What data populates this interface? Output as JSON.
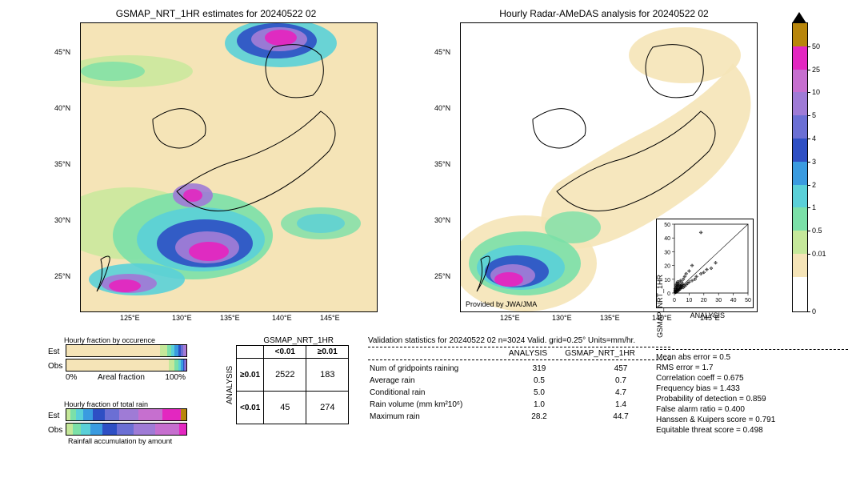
{
  "left_map": {
    "title": "GSMAP_NRT_1HR estimates for 20240522 02",
    "xlim": [
      120,
      150
    ],
    "ylim": [
      22,
      48
    ],
    "xticks": [
      "125°E",
      "130°E",
      "135°E",
      "140°E",
      "145°E"
    ],
    "yticks": [
      "25°N",
      "30°N",
      "35°N",
      "40°N",
      "45°N"
    ],
    "background_color": "#f5e4b7"
  },
  "right_map": {
    "title": "Hourly Radar-AMeDAS analysis for 20240522 02",
    "xlim": [
      120,
      150
    ],
    "ylim": [
      22,
      48
    ],
    "xticks": [
      "125°E",
      "130°E",
      "135°E",
      "140°E",
      "145°E"
    ],
    "yticks": [
      "25°N",
      "30°N",
      "35°N",
      "40°N",
      "45°N"
    ],
    "background_color": "#ffffff",
    "attribution": "Provided by JWA/JMA"
  },
  "colorbar": {
    "segments": [
      {
        "color": "#000000",
        "top_is_triangle": true
      },
      {
        "color": "#b8860b"
      },
      {
        "color": "#e327c0"
      },
      {
        "color": "#c66fcf"
      },
      {
        "color": "#9f7bd6"
      },
      {
        "color": "#6b6fd4"
      },
      {
        "color": "#2e4fc4"
      },
      {
        "color": "#3a9be0"
      },
      {
        "color": "#5ad0d8"
      },
      {
        "color": "#7be0a8"
      },
      {
        "color": "#c5e89a"
      },
      {
        "color": "#f5e4b7"
      },
      {
        "color": "#ffffff"
      }
    ],
    "ticks": [
      "50",
      "25",
      "10",
      "5",
      "4",
      "3",
      "2",
      "1",
      "0.5",
      "0.01",
      "0"
    ]
  },
  "scatter": {
    "xlabel": "ANALYSIS",
    "ylabel": "GSMAP_NRT_1HR",
    "xlim": [
      0,
      50
    ],
    "ylim": [
      0,
      50
    ],
    "ticks": [
      0,
      10,
      20,
      30,
      40,
      50
    ],
    "points": [
      [
        1,
        1
      ],
      [
        1,
        2
      ],
      [
        2,
        1
      ],
      [
        2,
        3
      ],
      [
        3,
        2
      ],
      [
        2,
        4
      ],
      [
        4,
        3
      ],
      [
        3,
        5
      ],
      [
        5,
        4
      ],
      [
        4,
        6
      ],
      [
        1,
        3
      ],
      [
        1,
        4
      ],
      [
        2,
        5
      ],
      [
        3,
        6
      ],
      [
        2,
        7
      ],
      [
        4,
        5
      ],
      [
        5,
        6
      ],
      [
        3,
        8
      ],
      [
        1,
        5
      ],
      [
        2,
        6
      ],
      [
        6,
        4
      ],
      [
        7,
        5
      ],
      [
        5,
        8
      ],
      [
        4,
        9
      ],
      [
        8,
        6
      ],
      [
        6,
        10
      ],
      [
        9,
        7
      ],
      [
        10,
        8
      ],
      [
        7,
        12
      ],
      [
        12,
        9
      ],
      [
        8,
        14
      ],
      [
        14,
        10
      ],
      [
        10,
        16
      ],
      [
        15,
        12
      ],
      [
        18,
        14
      ],
      [
        12,
        20
      ],
      [
        20,
        15
      ],
      [
        22,
        17
      ],
      [
        25,
        18
      ],
      [
        28,
        22
      ],
      [
        2,
        2
      ],
      [
        1,
        1
      ],
      [
        0.5,
        1
      ],
      [
        1,
        0.5
      ],
      [
        3,
        3
      ],
      [
        4,
        4
      ],
      [
        0.5,
        2
      ],
      [
        0.5,
        3
      ],
      [
        1,
        6
      ],
      [
        2,
        8
      ],
      [
        0.5,
        0.5
      ],
      [
        1.5,
        1.5
      ],
      [
        2.5,
        2
      ],
      [
        3.5,
        3
      ],
      [
        5,
        5
      ],
      [
        6,
        6
      ],
      [
        18,
        44
      ]
    ]
  },
  "occurrence": {
    "title": "Hourly fraction by occurence",
    "row_labels": [
      "Est",
      "Obs"
    ],
    "xaxis_label_left": "0%",
    "xaxis_label_right": "100%",
    "xaxis_title": "Areal fraction",
    "est_fracs": [
      0.78,
      0.06,
      0.03,
      0.03,
      0.03,
      0.02,
      0.02,
      0.02,
      0.01
    ],
    "obs_fracs": [
      0.85,
      0.05,
      0.03,
      0.02,
      0.02,
      0.01,
      0.01,
      0.005,
      0.005
    ],
    "colors": [
      "#f5e4b7",
      "#c5e89a",
      "#7be0a8",
      "#5ad0d8",
      "#3a9be0",
      "#2e4fc4",
      "#6b6fd4",
      "#9f7bd6",
      "#c66fcf"
    ]
  },
  "total_rain": {
    "title": "Hourly fraction of total rain",
    "footer": "Rainfall accumulation by amount",
    "row_labels": [
      "Est",
      "Obs"
    ],
    "est_fracs": [
      0.03,
      0.05,
      0.06,
      0.08,
      0.1,
      0.12,
      0.16,
      0.2,
      0.15,
      0.05
    ],
    "obs_fracs": [
      0.05,
      0.07,
      0.08,
      0.1,
      0.12,
      0.14,
      0.18,
      0.2,
      0.06,
      0.0
    ],
    "colors": [
      "#c5e89a",
      "#7be0a8",
      "#5ad0d8",
      "#3a9be0",
      "#2e4fc4",
      "#6b6fd4",
      "#9f7bd6",
      "#c66fcf",
      "#e327c0",
      "#b8860b"
    ]
  },
  "contingency": {
    "col_header": "GSMAP_NRT_1HR",
    "row_header": "ANALYSIS",
    "col_labels": [
      "<0.01",
      "≥0.01"
    ],
    "row_labels": [
      "≥0.01",
      "<0.01"
    ],
    "cells": [
      [
        2522,
        183
      ],
      [
        45,
        274
      ]
    ]
  },
  "validation": {
    "header": "Validation statistics for 20240522 02  n=3024 Valid. grid=0.25°  Units=mm/hr.",
    "col_labels": [
      "",
      "ANALYSIS",
      "GSMAP_NRT_1HR"
    ],
    "rows": [
      [
        "Num of gridpoints raining",
        "319",
        "457"
      ],
      [
        "Average rain",
        "0.5",
        "0.7"
      ],
      [
        "Conditional rain",
        "5.0",
        "4.7"
      ],
      [
        "Rain volume (mm km²10⁶)",
        "1.0",
        "1.4"
      ],
      [
        "Maximum rain",
        "28.2",
        "44.7"
      ]
    ],
    "metrics": [
      "Mean abs error =    0.5",
      "RMS error =    1.7",
      "Correlation coeff =  0.675",
      "Frequency bias =  1.433",
      "Probability of detection =  0.859",
      "False alarm ratio =  0.400",
      "Hanssen & Kuipers score =  0.791",
      "Equitable threat score =  0.498"
    ]
  }
}
